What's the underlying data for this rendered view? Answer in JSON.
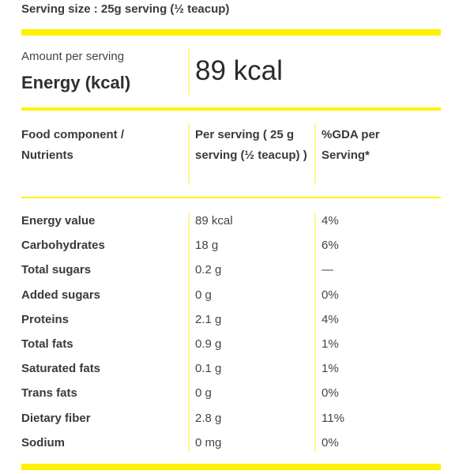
{
  "serving_size": "Serving size : 25g serving (½ teacup)",
  "energy": {
    "amount_label": "Amount per serving",
    "label": "Energy (kcal)",
    "value": "89 kcal"
  },
  "accent_color": "#fff200",
  "table": {
    "headers": [
      "Food component / Nutrients",
      "Per serving ( 25 g serving (½ teacup) )",
      "%GDA per Serving*"
    ],
    "rows": [
      {
        "name": "Energy value",
        "value": "89 kcal",
        "gda": "4%"
      },
      {
        "name": "Carbohydrates",
        "value": "18 g",
        "gda": "6%"
      },
      {
        "name": "Total sugars",
        "value": "0.2 g",
        "gda": "—"
      },
      {
        "name": "Added sugars",
        "value": "0 g",
        "gda": "0%"
      },
      {
        "name": "Proteins",
        "value": "2.1 g",
        "gda": "4%"
      },
      {
        "name": "Total fats",
        "value": "0.9 g",
        "gda": "1%"
      },
      {
        "name": "Saturated fats",
        "value": "0.1 g",
        "gda": "1%"
      },
      {
        "name": "Trans fats",
        "value": "0 g",
        "gda": "0%"
      },
      {
        "name": "Dietary fiber",
        "value": "2.8 g",
        "gda": "11%"
      },
      {
        "name": "Sodium",
        "value": "0 mg",
        "gda": "0%"
      }
    ]
  }
}
